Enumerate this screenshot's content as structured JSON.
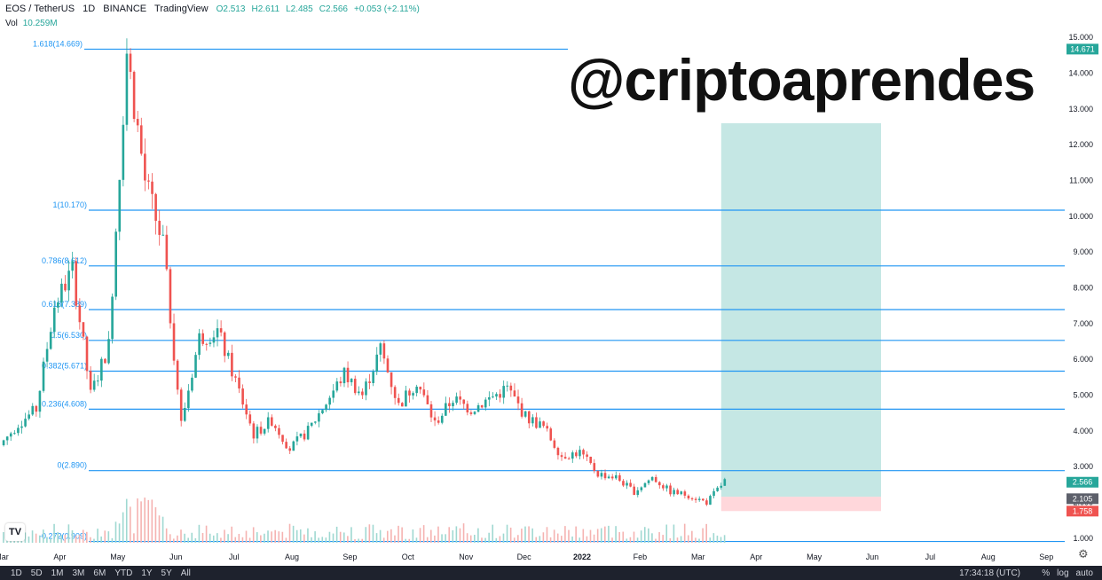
{
  "header": {
    "symbol": "EOS / TetherUS",
    "interval": "1D",
    "exchange": "BINANCE",
    "source": "TradingView",
    "open": "O2.513",
    "high": "H2.611",
    "low": "L2.485",
    "close": "C2.566",
    "change": "+0.053 (+2.11%)",
    "vol_label": "Vol",
    "vol_value": "10.259M"
  },
  "watermark": "@criptoaprendes",
  "footer": {
    "ranges": [
      "1D",
      "5D",
      "1M",
      "3M",
      "6M",
      "YTD",
      "1Y",
      "5Y",
      "All"
    ],
    "time": "17:34:18 (UTC)",
    "options": [
      "%",
      "log",
      "auto"
    ]
  },
  "colors": {
    "up": "#26a69a",
    "down": "#ef5350",
    "fib": "#2196f3",
    "target_zone": "#b2dfdb",
    "stop_zone": "#ffcdd2"
  },
  "chart_data": {
    "type": "candlestick",
    "title": "EOS / TetherUS 1D BINANCE",
    "ylim": [
      0.75,
      15.3
    ],
    "y_ticks": [
      "1.000",
      "2.000",
      "3.000",
      "4.000",
      "5.000",
      "6.000",
      "7.000",
      "8.000",
      "9.000",
      "10.000",
      "11.000",
      "12.000",
      "13.000",
      "14.000",
      "15.000"
    ],
    "x_ticks": [
      "Mar",
      "Apr",
      "May",
      "Jun",
      "Jul",
      "Aug",
      "Sep",
      "Oct",
      "Nov",
      "Dec",
      "2022",
      "Feb",
      "Mar",
      "Apr",
      "May",
      "Jun",
      "Jul",
      "Aug",
      "Sep"
    ],
    "fib_levels": [
      {
        "label": "1.618(14.669)",
        "value": 14.669
      },
      {
        "label": "1(10.170)",
        "value": 10.17
      },
      {
        "label": "0.786(8.612)",
        "value": 8.612
      },
      {
        "label": "0.618(7.389)",
        "value": 7.389
      },
      {
        "label": "0.5(6.530)",
        "value": 6.53
      },
      {
        "label": "0.382(5.671)",
        "value": 5.671
      },
      {
        "label": "0.236(4.608)",
        "value": 4.608
      },
      {
        "label": "0(2.890)",
        "value": 2.89
      },
      {
        "label": "-0.272(0.909)",
        "value": 0.909
      }
    ],
    "price_labels": [
      {
        "text": "14.671",
        "value": 14.671,
        "color": "#26a69a"
      },
      {
        "text": "2.566",
        "value": 2.566,
        "color": "#26a69a"
      },
      {
        "text": "2.105",
        "value": 2.105,
        "color": "#5d606b"
      },
      {
        "text": "1.758",
        "value": 1.758,
        "color": "#ef5350"
      }
    ],
    "position": {
      "entry": 2.16,
      "target": 12.6,
      "stop": 1.76,
      "start": "Mar 2022",
      "end": "Jul 2022"
    },
    "close_path": [
      [
        "Mar",
        3.6
      ],
      [
        "Mar",
        4.2
      ],
      [
        "Apr",
        4.6
      ],
      [
        "Apr",
        7.5
      ],
      [
        "Apr",
        8.5
      ],
      [
        "Apr",
        5.0
      ],
      [
        "May",
        6.4
      ],
      [
        "May",
        14.6
      ],
      [
        "May",
        11.0
      ],
      [
        "May",
        9.2
      ],
      [
        "May",
        4.2
      ],
      [
        "May",
        6.6
      ],
      [
        "Jun",
        6.8
      ],
      [
        "Jun",
        5.4
      ],
      [
        "Jun",
        3.9
      ],
      [
        "Jul",
        4.3
      ],
      [
        "Jul",
        3.5
      ],
      [
        "Jul",
        4.0
      ],
      [
        "Aug",
        4.8
      ],
      [
        "Aug",
        5.6
      ],
      [
        "Aug",
        5.0
      ],
      [
        "Sep",
        6.3
      ],
      [
        "Sep",
        4.7
      ],
      [
        "Sep",
        5.4
      ],
      [
        "Oct",
        4.2
      ],
      [
        "Oct",
        4.9
      ],
      [
        "Oct",
        4.6
      ],
      [
        "Nov",
        4.9
      ],
      [
        "Nov",
        5.2
      ],
      [
        "Nov",
        4.4
      ],
      [
        "Dec",
        4.1
      ],
      [
        "Dec",
        3.3
      ],
      [
        "Dec",
        3.4
      ],
      [
        "2022",
        2.8
      ],
      [
        "2022",
        2.7
      ],
      [
        "Feb",
        2.3
      ],
      [
        "Feb",
        2.7
      ],
      [
        "Feb",
        2.3
      ],
      [
        "Mar",
        2.2
      ],
      [
        "Mar",
        2.0
      ],
      [
        "Mar",
        2.6
      ]
    ]
  }
}
